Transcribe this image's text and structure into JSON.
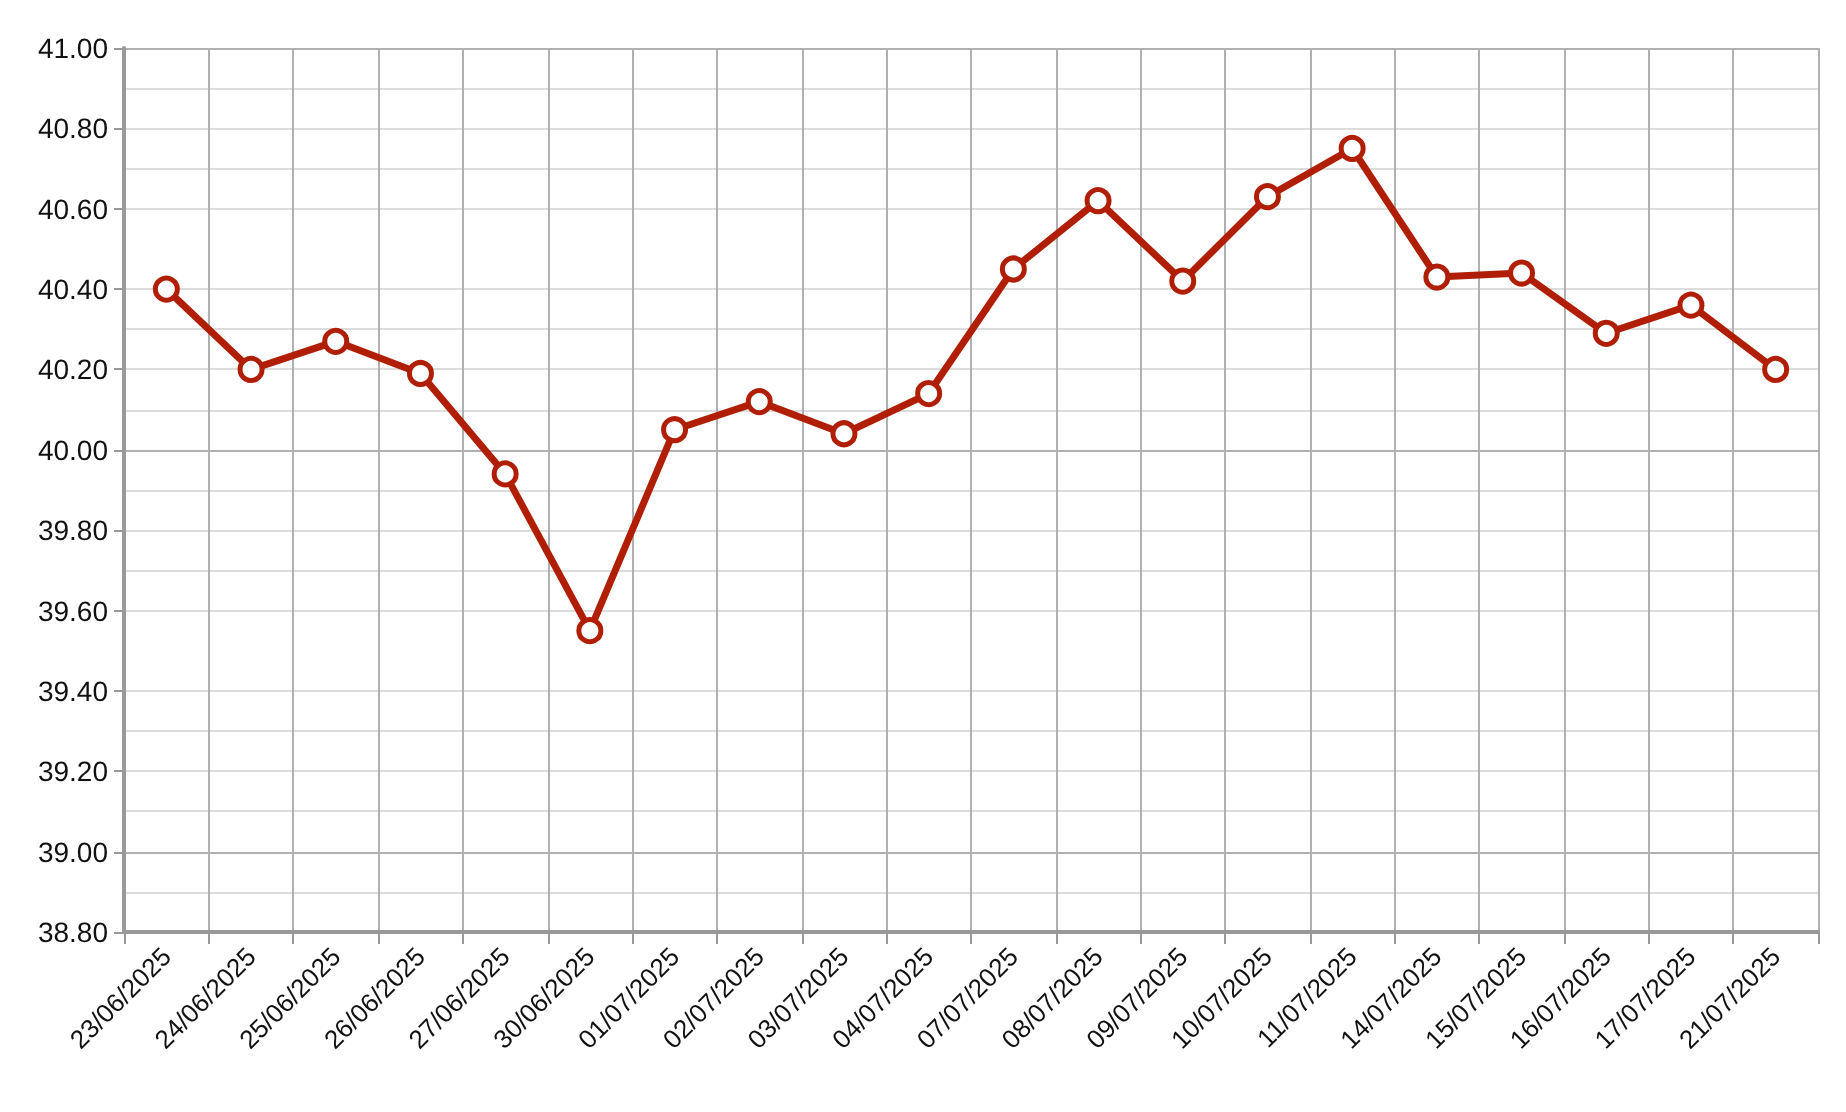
{
  "chart_data": {
    "type": "line",
    "categories": [
      "23/06/2025",
      "24/06/2025",
      "25/06/2025",
      "26/06/2025",
      "27/06/2025",
      "30/06/2025",
      "01/07/2025",
      "02/07/2025",
      "03/07/2025",
      "04/07/2025",
      "07/07/2025",
      "08/07/2025",
      "09/07/2025",
      "10/07/2025",
      "11/07/2025",
      "14/07/2025",
      "15/07/2025",
      "16/07/2025",
      "17/07/2025",
      "21/07/2025"
    ],
    "series": [
      {
        "color": "#b01e05",
        "values": [
          40.4,
          40.2,
          40.27,
          40.19,
          39.94,
          39.55,
          40.05,
          40.12,
          40.04,
          40.14,
          40.45,
          40.62,
          40.42,
          40.63,
          40.75,
          40.43,
          40.44,
          40.29,
          40.36,
          40.2
        ]
      }
    ],
    "ylim": [
      38.8,
      41.0
    ],
    "yticks": [
      {
        "value": 38.8,
        "label": "38.80"
      },
      {
        "value": 39.0,
        "label": "39.00"
      },
      {
        "value": 39.2,
        "label": "39.20"
      },
      {
        "value": 39.4,
        "label": "39.40"
      },
      {
        "value": 39.6,
        "label": "39.60"
      },
      {
        "value": 39.8,
        "label": "39.80"
      },
      {
        "value": 40.0,
        "label": "40.00"
      },
      {
        "value": 40.2,
        "label": "40.20"
      },
      {
        "value": 40.4,
        "label": "40.40"
      },
      {
        "value": 40.6,
        "label": "40.60"
      },
      {
        "value": 40.8,
        "label": "40.80"
      },
      {
        "value": 41.0,
        "label": "41.00"
      }
    ],
    "grid": true,
    "marker": "circle",
    "line_style": "solid"
  }
}
